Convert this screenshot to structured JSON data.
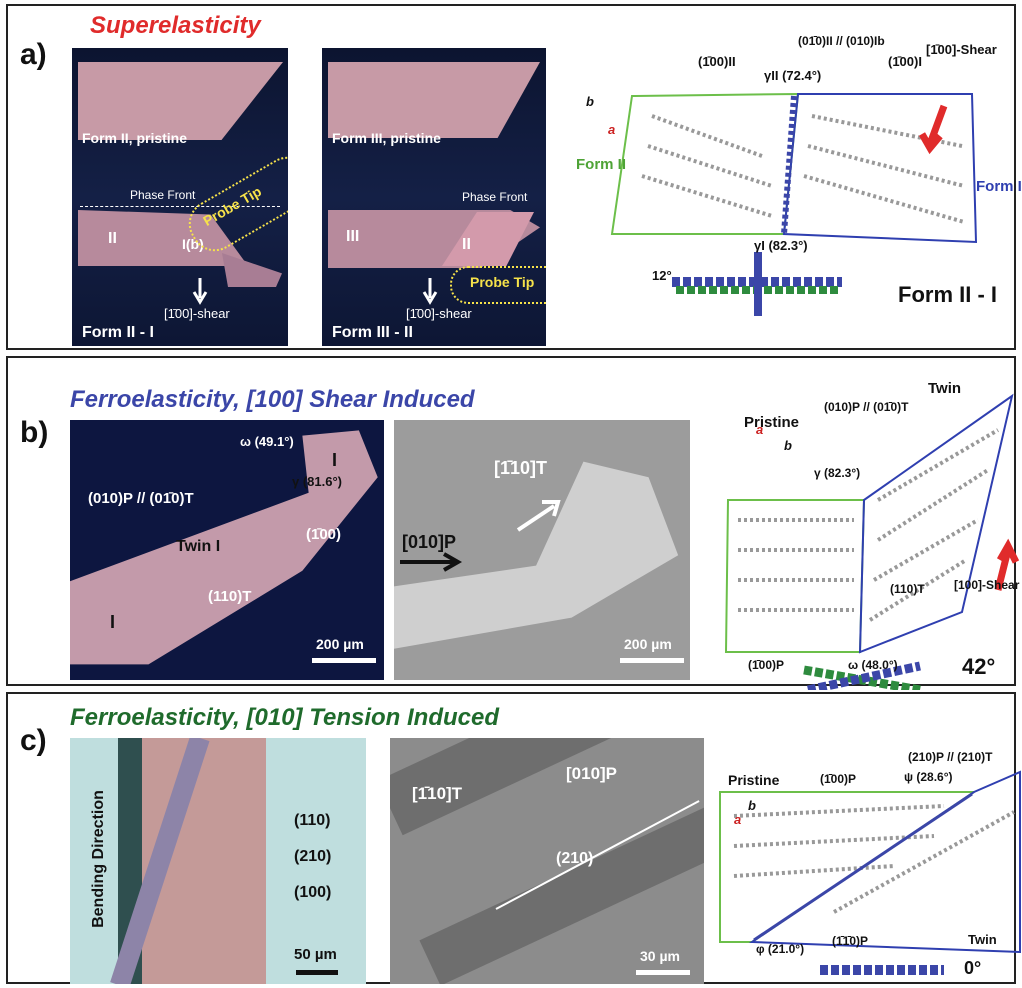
{
  "panel_a": {
    "label": "a)",
    "title": "Superelasticity",
    "photo1": {
      "top": "Form II, pristine",
      "phase_front": "Phase Front",
      "region_a": "II",
      "region_b": "I(b)",
      "probe": "Probe Tip",
      "shear": "[1̄00]-shear",
      "bottom": "Form II - I"
    },
    "photo2": {
      "top": "Form III, pristine",
      "phase_front": "Phase Front",
      "region_a": "III",
      "region_b": "II",
      "probe": "Probe Tip",
      "shear": "[1̄00]-shear",
      "bottom": "Form III - II"
    },
    "diagram": {
      "plane_left": "(1̄00)II",
      "plane_mid": "(01̄0)II // (010)Ib",
      "plane_right": "(1̄00)I",
      "shear": "[1̄00]-Shear",
      "gamma_ii": "γII (72.4°)",
      "gamma_i": "γI (82.3°)",
      "form_left": "Form II",
      "form_right": "Form I",
      "rotation": "12°",
      "caption": "Form II - I",
      "axis_a": "a",
      "axis_b": "b"
    }
  },
  "panel_b": {
    "label": "b)",
    "title": "Ferroelasticity, [100] Shear Induced",
    "photo1": {
      "omega": "ω (49.1°)",
      "gamma": "γ (81.6°)",
      "interface": "(010)P // (01̄0)T",
      "twin": "Twin I",
      "region_1": "I",
      "region_2": "I",
      "plane_100": "(1̄00)",
      "plane_110": "(110)T",
      "scale": "200 µm"
    },
    "photo2": {
      "dir_t": "[1̄10]T",
      "dir_p": "[010]P",
      "scale": "200 µm"
    },
    "diagram": {
      "pristine": "Pristine",
      "twin": "Twin",
      "interface": "(010)P // (01̄0)T",
      "gamma": "γ (82.3°)",
      "plane_110": "(110)T",
      "plane_100": "(1̄00)P",
      "omega": "ω (48.0°)",
      "shear": "[100]-Shear",
      "rotation": "42°",
      "axis_a": "a",
      "axis_b": "b"
    }
  },
  "panel_c": {
    "label": "c)",
    "title": "Ferroelasticity, [010] Tension Induced",
    "photo1": {
      "bending": "Bending Direction",
      "plane_110": "(110)",
      "plane_210": "(210)",
      "plane_100": "(100)",
      "scale": "50 µm"
    },
    "photo2": {
      "dir_t": "[1̄10]T",
      "dir_p": "[010]P",
      "plane_210": "(210)",
      "scale": "30 µm"
    },
    "diagram": {
      "pristine": "Pristine",
      "plane_100": "(1̄00)P",
      "psi": "ψ (28.6°)",
      "interface": "(210)P // (210)T",
      "phi": "φ (21.0°)",
      "plane_110": "(1̄1̄0)P",
      "twin": "Twin",
      "rotation": "0°",
      "axis_a": "a",
      "axis_b": "b"
    }
  },
  "colors": {
    "red": "#e02b2b",
    "blue": "#3b46a8",
    "green": "#1f6b2c",
    "form_ii_green": "#6cbf4a",
    "form_i_blue": "#2f3fb0"
  }
}
